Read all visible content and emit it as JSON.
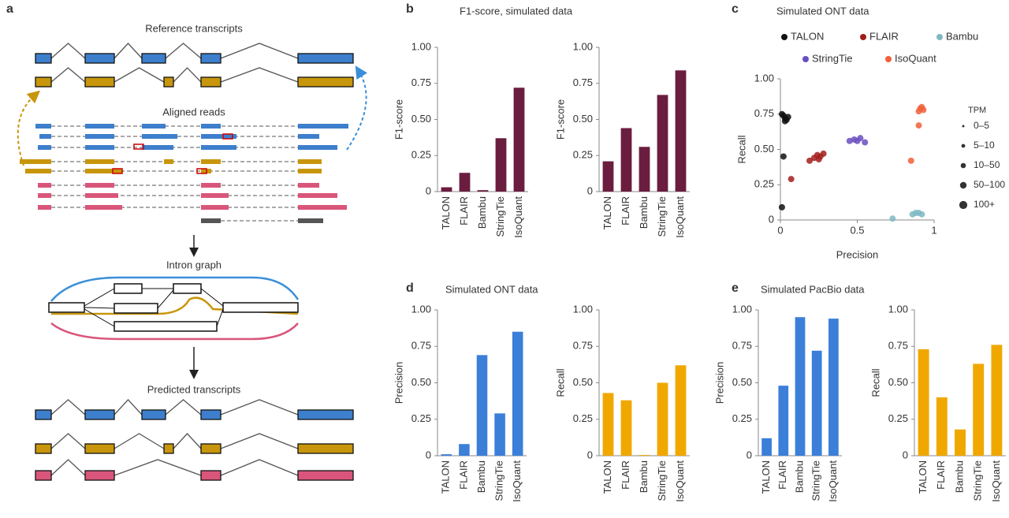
{
  "diagram": {
    "panel": "a",
    "labels": [
      "Reference transcripts",
      "Aligned reads",
      "Intron graph",
      "Predicted transcripts"
    ]
  },
  "chart_data": [
    {
      "type": "bar",
      "panel": "b",
      "title": "F1-score, simulated data",
      "ylabel": "F1-score",
      "categories": [
        "TALON",
        "FLAIR",
        "Bambu",
        "StringTie",
        "IsoQuant"
      ],
      "values": [
        0.03,
        0.13,
        0.01,
        0.37,
        0.72
      ],
      "color": "#6b1d3f",
      "ylim": [
        0,
        1
      ],
      "yticks": [
        0,
        0.25,
        {
          "value": 0.5,
          "label": "0.50"
        },
        0.75,
        {
          "value": 1,
          "label": "1.00"
        }
      ]
    },
    {
      "type": "bar",
      "ylabel": "F1-score",
      "categories": [
        "TALON",
        "FLAIR",
        "Bambu",
        "StringTie",
        "IsoQuant"
      ],
      "values": [
        0.21,
        0.44,
        0.31,
        0.67,
        0.84
      ],
      "color": "#6b1d3f",
      "ylim": [
        0,
        1
      ],
      "yticks": [
        0,
        0.25,
        {
          "value": 0.5,
          "label": "0.50"
        },
        0.75,
        {
          "value": 1,
          "label": "1.00"
        }
      ]
    },
    {
      "type": "scatter",
      "panel": "c",
      "title": "Simulated ONT data",
      "xlabel": "Precision",
      "ylabel": "Recall",
      "xlim": [
        0,
        1
      ],
      "xticks": [
        0,
        0.5,
        1
      ],
      "ylim": [
        0,
        1
      ],
      "yticks": [
        0,
        0.25,
        {
          "value": 0.5,
          "label": "0.50"
        },
        0.75,
        {
          "value": 1,
          "label": "1.00"
        }
      ],
      "series": [
        {
          "name": "TALON",
          "color": "#111111",
          "x": [
            0.01,
            0.02,
            0.03,
            0.04,
            0.05,
            0.03,
            0.02,
            0.01
          ],
          "y": [
            0.75,
            0.74,
            0.72,
            0.71,
            0.73,
            0.7,
            0.45,
            0.09
          ]
        },
        {
          "name": "FLAIR",
          "color": "#a31c1c",
          "x": [
            0.22,
            0.24,
            0.26,
            0.28,
            0.25,
            0.19,
            0.07
          ],
          "y": [
            0.44,
            0.46,
            0.45,
            0.47,
            0.43,
            0.42,
            0.29
          ]
        },
        {
          "name": "Bambu",
          "color": "#7fb8c4",
          "x": [
            0.86,
            0.88,
            0.9,
            0.92,
            0.73
          ],
          "y": [
            0.04,
            0.05,
            0.05,
            0.04,
            0.01
          ]
        },
        {
          "name": "StringTie",
          "color": "#6a4fc0",
          "x": [
            0.45,
            0.48,
            0.52,
            0.55,
            0.5
          ],
          "y": [
            0.56,
            0.57,
            0.58,
            0.55,
            0.56
          ]
        },
        {
          "name": "IsoQuant",
          "color": "#f0603a",
          "x": [
            0.9,
            0.91,
            0.92,
            0.93,
            0.9,
            0.85
          ],
          "y": [
            0.77,
            0.79,
            0.8,
            0.78,
            0.67,
            0.42
          ]
        }
      ],
      "size_legend": {
        "title": "TPM",
        "labels": [
          "0–5",
          "5–10",
          "10–50",
          "50–100",
          "100+"
        ]
      }
    },
    {
      "type": "bar",
      "panel": "d",
      "title": "Simulated ONT data",
      "ylabel": "Precision",
      "categories": [
        "TALON",
        "FLAIR",
        "Bambu",
        "StringTie",
        "IsoQuant"
      ],
      "values": [
        0.01,
        0.08,
        0.69,
        0.29,
        0.85
      ],
      "color": "#3b7fd9",
      "ylim": [
        0,
        1
      ],
      "yticks": [
        0,
        0.25,
        {
          "value": 0.5,
          "label": "0.50"
        },
        0.75,
        {
          "value": 1,
          "label": "1.00"
        }
      ]
    },
    {
      "type": "bar",
      "ylabel": "Recall",
      "categories": [
        "TALON",
        "FLAIR",
        "Bambu",
        "StringTie",
        "IsoQuant"
      ],
      "values": [
        0.43,
        0.38,
        0.005,
        0.5,
        0.62
      ],
      "color": "#f0a800",
      "ylim": [
        0,
        1
      ],
      "yticks": [
        0,
        0.25,
        {
          "value": 0.5,
          "label": "0.50"
        },
        0.75,
        {
          "value": 1,
          "label": "1.00"
        }
      ]
    },
    {
      "type": "bar",
      "panel": "e",
      "title": "Simulated PacBio data",
      "ylabel": "Precision",
      "categories": [
        "TALON",
        "FLAIR",
        "Bambu",
        "StringTie",
        "IsoQuant"
      ],
      "values": [
        0.12,
        0.48,
        0.95,
        0.72,
        0.94
      ],
      "color": "#3b7fd9",
      "ylim": [
        0,
        1
      ],
      "yticks": [
        0,
        0.25,
        {
          "value": 0.5,
          "label": "0.50"
        },
        0.75,
        {
          "value": 1,
          "label": "1.00"
        }
      ]
    },
    {
      "type": "bar",
      "ylabel": "Recall",
      "categories": [
        "TALON",
        "FLAIR",
        "Bambu",
        "StringTie",
        "IsoQuant"
      ],
      "values": [
        0.73,
        0.4,
        0.18,
        0.63,
        0.76
      ],
      "color": "#f0a800",
      "ylim": [
        0,
        1
      ],
      "yticks": [
        0,
        0.25,
        {
          "value": 0.5,
          "label": "0.50"
        },
        0.75,
        {
          "value": 1,
          "label": "1.00"
        }
      ]
    }
  ]
}
